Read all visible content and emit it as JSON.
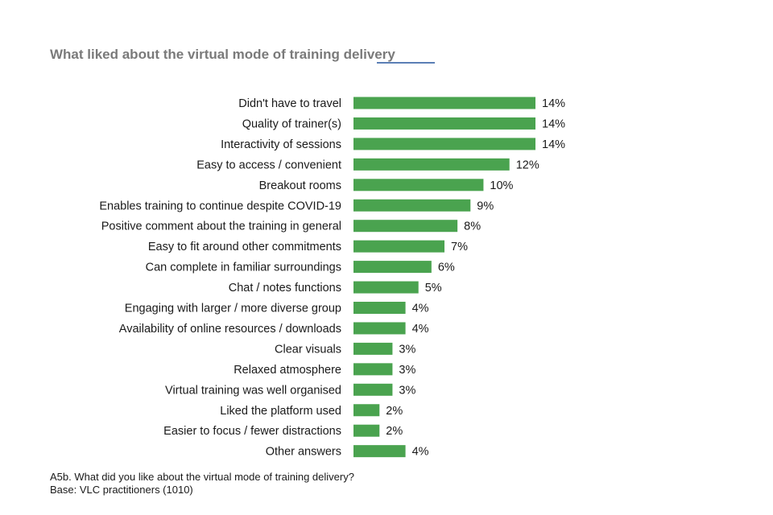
{
  "chart_data": {
    "type": "bar",
    "orientation": "horizontal",
    "title": "What liked about the virtual mode of training delivery",
    "xlabel": "",
    "ylabel": "",
    "value_suffix": "%",
    "xlim": [
      0,
      14
    ],
    "bar_color": "#4aa34f",
    "categories": [
      "Didn't have to travel",
      "Quality of trainer(s)",
      "Interactivity of sessions",
      "Easy to access / convenient",
      "Breakout rooms",
      "Enables training to continue despite COVID-19",
      "Positive comment about the training in general",
      "Easy to fit around other commitments",
      "Can complete in familiar surroundings",
      "Chat / notes functions",
      "Engaging with larger / more diverse group",
      "Availability of online resources / downloads",
      "Clear visuals",
      "Relaxed atmosphere",
      "Virtual training was well organised",
      "Liked the platform used",
      "Easier to focus / fewer distractions",
      "Other answers"
    ],
    "values": [
      14,
      14,
      14,
      12,
      10,
      9,
      8,
      7,
      6,
      5,
      4,
      4,
      3,
      3,
      3,
      2,
      2,
      4
    ]
  },
  "footnote": {
    "question": "A5b. What did you like about the virtual mode of training delivery?",
    "base": "Base: VLC practitioners (1010)"
  }
}
